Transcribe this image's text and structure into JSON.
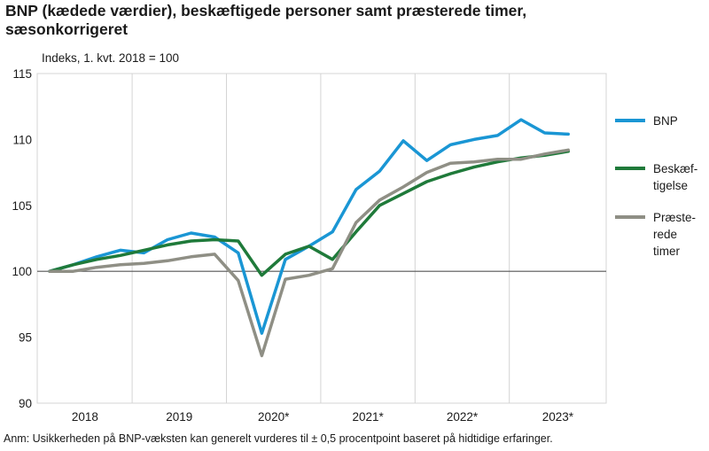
{
  "title_line1": "BNP (kædede værdier), beskæftigede personer samt præsterede timer,",
  "title_line2": "sæsonkorrigeret",
  "unit_label": "Indeks, 1. kvt. 2018  = 100",
  "note": "Anm: Usikkerheden på BNP-væksten kan generelt vurderes til ± 0,5 procentpoint baseret på hidtidige erfaringer.",
  "colors": {
    "bnp": "#1a96d4",
    "employment": "#1f7a3a",
    "hours": "#8f8f85",
    "grid": "#d4d4d4",
    "baseline": "#555555"
  },
  "chart_data": {
    "type": "line",
    "ylim": [
      90,
      115
    ],
    "yticks": [
      90,
      95,
      100,
      105,
      110,
      115
    ],
    "baseline": 100,
    "categories": [
      "2018K1",
      "2018K2",
      "2018K3",
      "2018K4",
      "2019K1",
      "2019K2",
      "2019K3",
      "2019K4",
      "2020K1",
      "2020K2",
      "2020K3",
      "2020K4",
      "2021K1",
      "2021K2",
      "2021K3",
      "2021K4",
      "2022K1",
      "2022K2",
      "2022K3",
      "2022K4",
      "2023K1",
      "2023K2",
      "2023K3"
    ],
    "year_labels": [
      "2018",
      "2019",
      "2020*",
      "2021*",
      "2022*",
      "2023*"
    ],
    "series": [
      {
        "key": "bnp",
        "name": "BNP",
        "values": [
          100.0,
          100.5,
          101.1,
          101.6,
          101.4,
          102.4,
          102.9,
          102.6,
          101.4,
          95.3,
          100.9,
          101.9,
          103.0,
          106.2,
          107.6,
          109.9,
          108.4,
          109.6,
          110.0,
          110.3,
          111.5,
          110.5,
          110.4
        ]
      },
      {
        "key": "employment",
        "name": "Beskæf-tigelse",
        "legend_lines": [
          "Beskæf-",
          "tigelse"
        ],
        "values": [
          100.0,
          100.5,
          100.9,
          101.2,
          101.6,
          102.0,
          102.3,
          102.4,
          102.3,
          99.7,
          101.3,
          101.9,
          100.9,
          103.0,
          105.0,
          105.9,
          106.8,
          107.4,
          107.9,
          108.3,
          108.6,
          108.8,
          109.1
        ]
      },
      {
        "key": "hours",
        "name": "Præste-rede timer",
        "legend_lines": [
          "Præste-",
          "rede",
          "timer"
        ],
        "values": [
          100.0,
          100.0,
          100.3,
          100.5,
          100.6,
          100.8,
          101.1,
          101.3,
          99.3,
          93.6,
          99.4,
          99.7,
          100.2,
          103.7,
          105.4,
          106.4,
          107.5,
          108.2,
          108.3,
          108.5,
          108.5,
          108.9,
          109.2
        ]
      }
    ]
  }
}
